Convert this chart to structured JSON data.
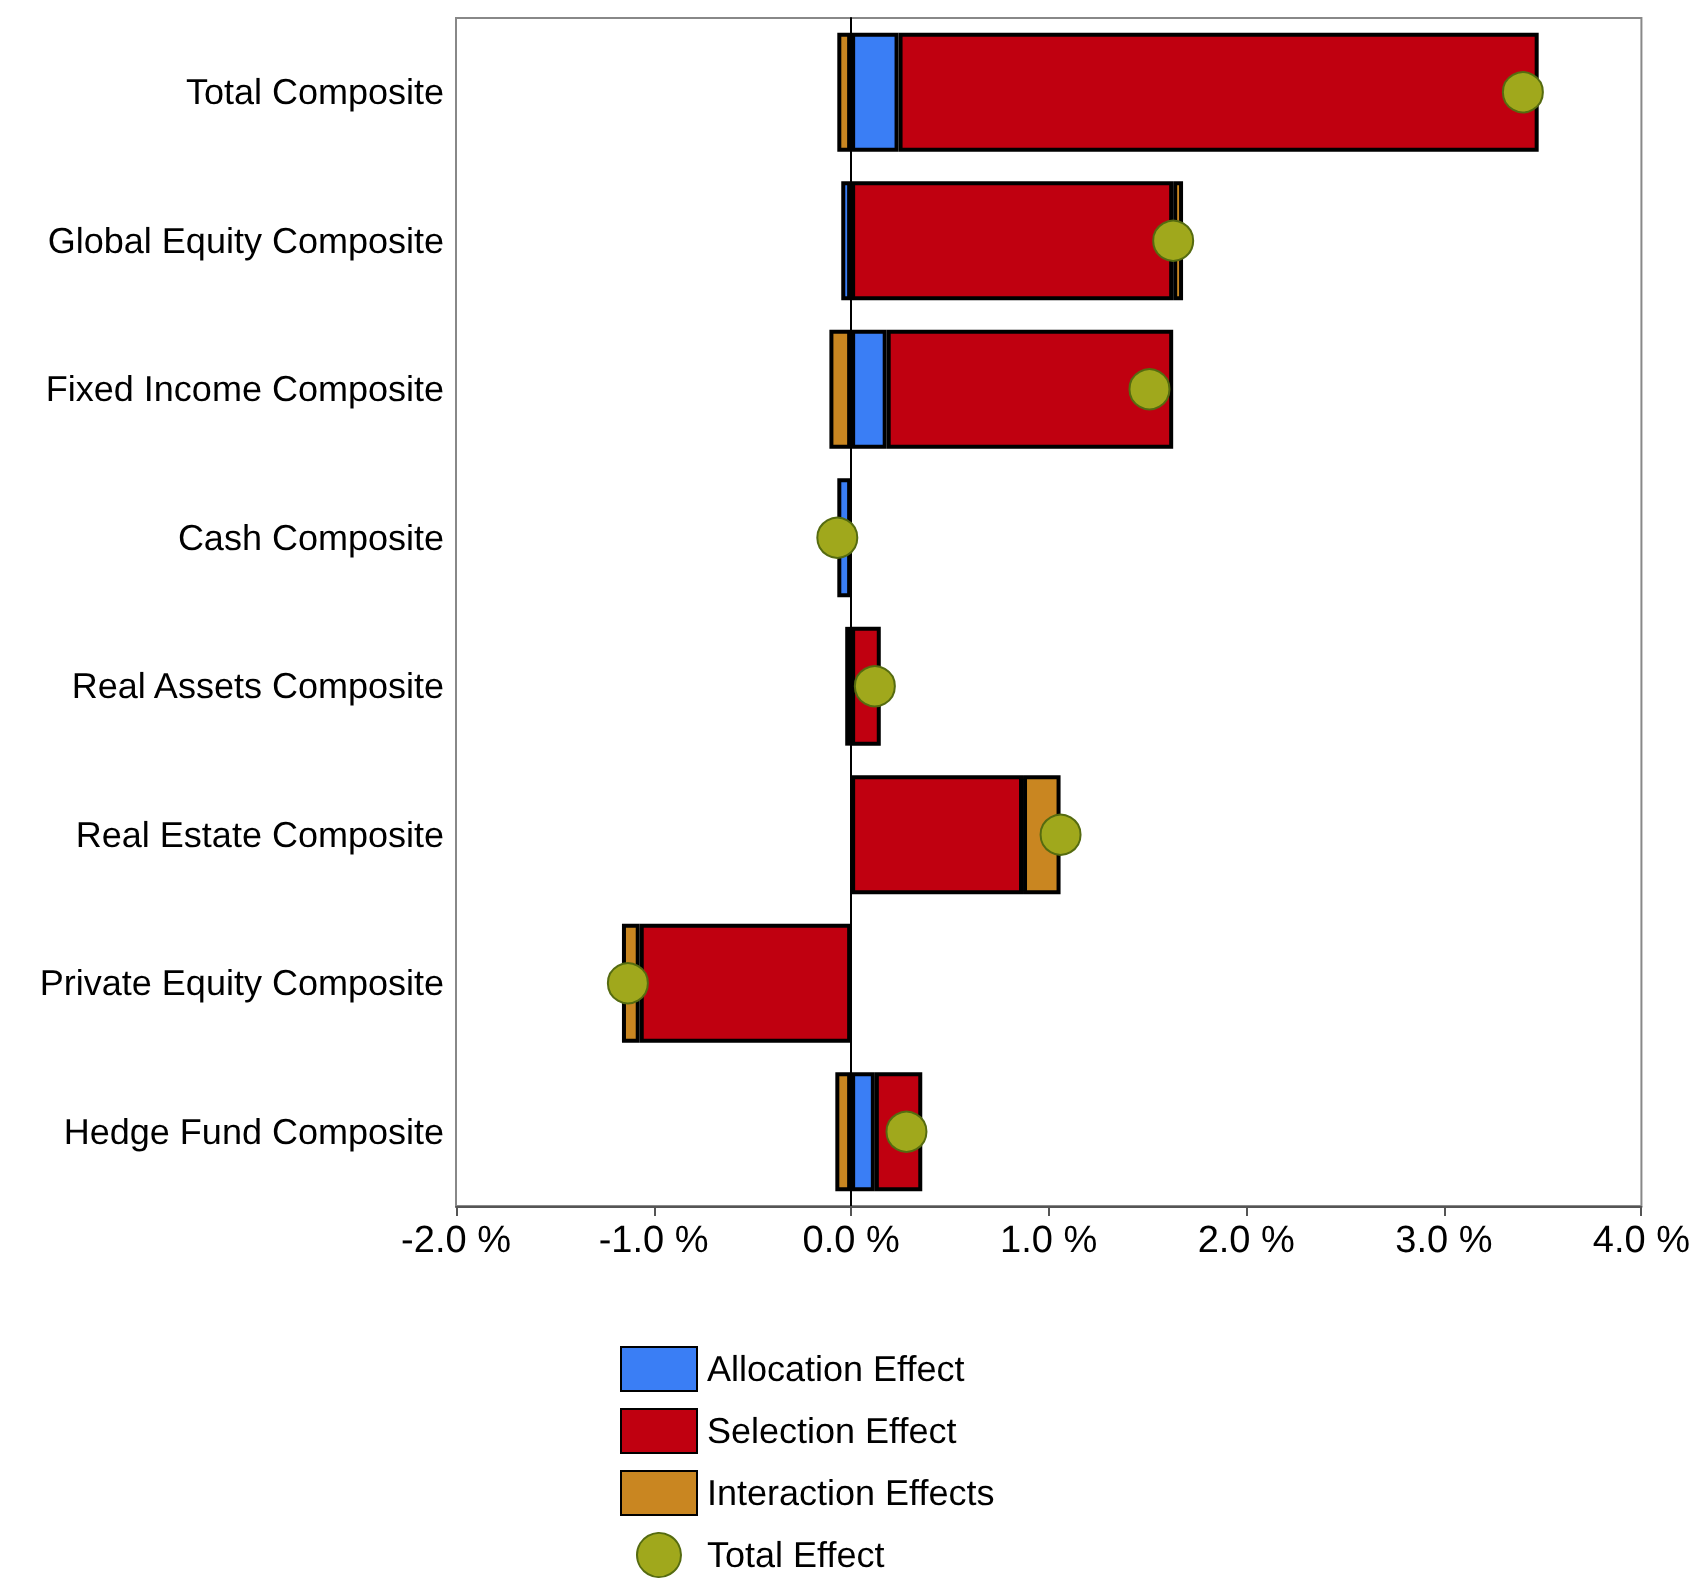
{
  "chart_data": {
    "type": "bar",
    "orientation": "horizontal",
    "stacked": true,
    "categories": [
      "Total Composite",
      "Global Equity Composite",
      "Fixed Income Composite",
      "Cash Composite",
      "Real Assets Composite",
      "Real Estate Composite",
      "Private Equity Composite",
      "Hedge Fund Composite"
    ],
    "series": [
      {
        "name": "Allocation Effect",
        "color": "#3a7ef5",
        "values": [
          0.24,
          -0.05,
          0.18,
          -0.07,
          null,
          null,
          null,
          0.12
        ]
      },
      {
        "name": "Selection Effect",
        "color": "#c00010",
        "values": [
          3.24,
          1.63,
          1.45,
          null,
          0.15,
          0.87,
          -1.07,
          0.24
        ]
      },
      {
        "name": "Interaction Effects",
        "color": "#c98621",
        "values": [
          -0.07,
          0.05,
          -0.11,
          null,
          -0.03,
          0.19,
          -0.09,
          -0.08
        ]
      },
      {
        "name": "Total Effect",
        "type": "scatter",
        "marker": "circle",
        "color": "#a0a81c",
        "values": [
          3.4,
          1.63,
          1.51,
          -0.07,
          0.12,
          1.06,
          -1.13,
          0.28
        ]
      }
    ],
    "xlim": [
      -2,
      4
    ],
    "xticks": [
      {
        "value": -2,
        "label": "-2.0 %"
      },
      {
        "value": -1,
        "label": "-1.0 %"
      },
      {
        "value": 0,
        "label": "0.0 %"
      },
      {
        "value": 1,
        "label": "1.0 %"
      },
      {
        "value": 2,
        "label": "2.0 %"
      },
      {
        "value": 3,
        "label": "3.0 %"
      },
      {
        "value": 4,
        "label": "4.0 %"
      }
    ],
    "legend": "bottom"
  }
}
